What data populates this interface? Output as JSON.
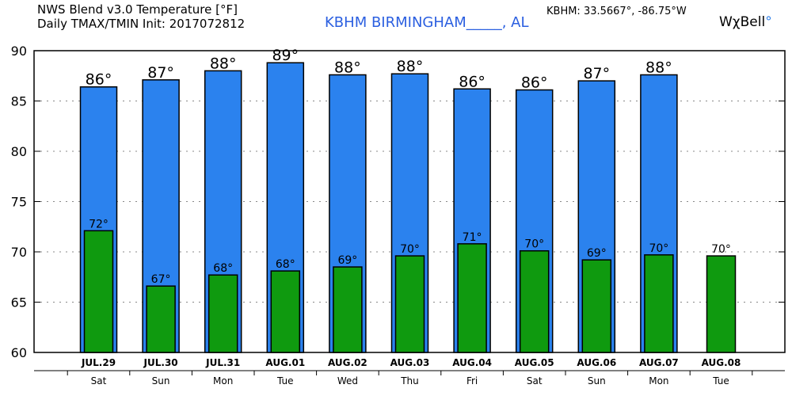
{
  "header": {
    "title_line1": "NWS Blend v3.0 Temperature [°F]",
    "title_line2": "Daily TMAX/TMIN Init: 2017072812",
    "station": "KBHM BIRMINGHAM_____, AL",
    "coords": "KBHM: 33.5667°, -86.75°W",
    "brand_text": "WχBell",
    "brand_dot": "°"
  },
  "chart_data": {
    "type": "bar",
    "categories": [
      "JUL.29",
      "JUL.30",
      "JUL.31",
      "AUG.01",
      "AUG.02",
      "AUG.03",
      "AUG.04",
      "AUG.05",
      "AUG.06",
      "AUG.07",
      "AUG.08"
    ],
    "days": [
      "Sat",
      "Sun",
      "Mon",
      "Tue",
      "Wed",
      "Thu",
      "Fri",
      "Sat",
      "Sun",
      "Mon",
      "Tue"
    ],
    "series": [
      {
        "values": [
          86.4,
          87.1,
          88.0,
          88.8,
          87.6,
          87.7,
          86.2,
          86.1,
          87.0,
          87.6,
          null
        ],
        "labels": [
          "86°",
          "87°",
          "88°",
          "89°",
          "88°",
          "88°",
          "86°",
          "86°",
          "87°",
          "88°",
          ""
        ],
        "color": "#2b82ee"
      },
      {
        "values": [
          72.1,
          66.6,
          67.7,
          68.1,
          68.5,
          69.6,
          70.8,
          70.1,
          69.2,
          69.7,
          69.6
        ],
        "labels": [
          "72°",
          "67°",
          "68°",
          "68°",
          "69°",
          "70°",
          "71°",
          "70°",
          "69°",
          "70°",
          "70°"
        ],
        "color": "#0f9a0f"
      }
    ],
    "ylim": [
      60,
      90
    ],
    "yticks": [
      60,
      65,
      70,
      75,
      80,
      85,
      90
    ],
    "ytick_labels": [
      "60",
      "65",
      "70",
      "75",
      "80",
      "85",
      "90"
    ],
    "grid": "dotted"
  }
}
